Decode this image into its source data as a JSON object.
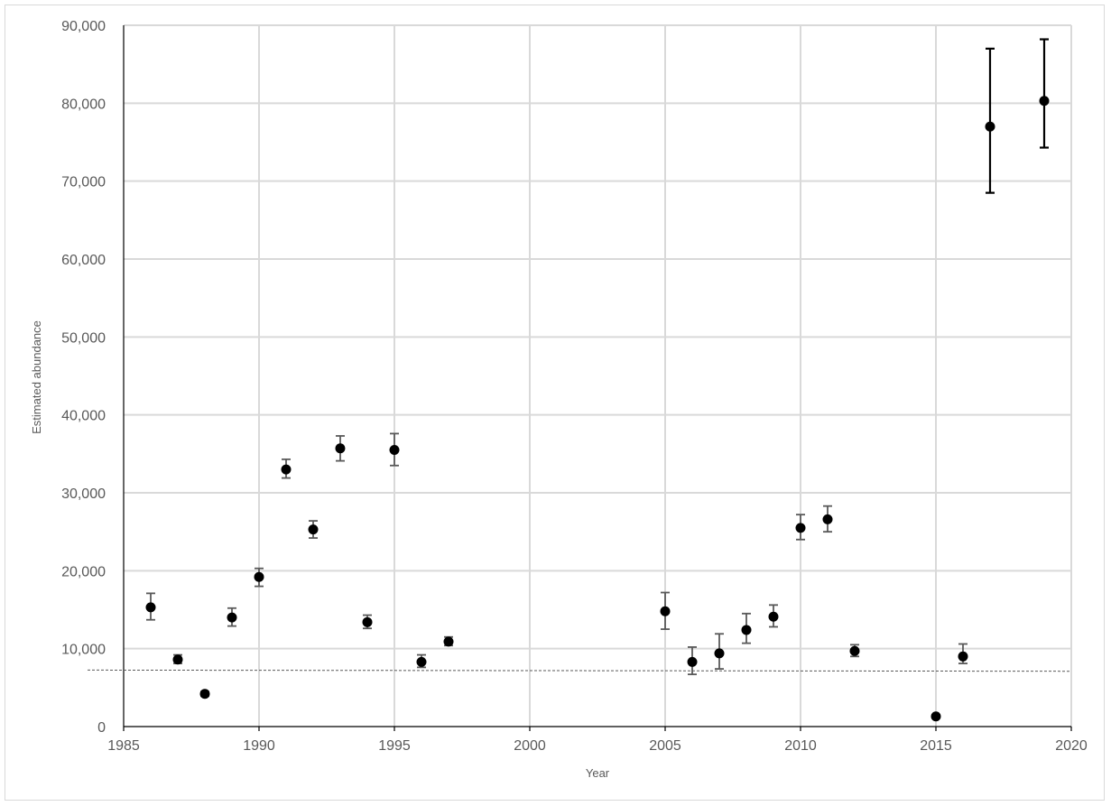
{
  "chart_data": {
    "type": "scatter",
    "title": "",
    "xlabel": "Year",
    "ylabel": "Estimated abundance",
    "xlim": [
      1985,
      2020
    ],
    "ylim": [
      0,
      90000
    ],
    "x_ticks": [
      1985,
      1990,
      1995,
      2000,
      2005,
      2010,
      2015,
      2020
    ],
    "y_ticks": [
      0,
      10000,
      20000,
      30000,
      40000,
      50000,
      60000,
      70000,
      80000,
      90000
    ],
    "y_tick_labels": [
      "0",
      "10,000",
      "20,000",
      "30,000",
      "40,000",
      "50,000",
      "60,000",
      "70,000",
      "80,000",
      "90,000"
    ],
    "x_tick_labels": [
      "1985",
      "1990",
      "1995",
      "2000",
      "2005",
      "2010",
      "2015",
      "2020"
    ],
    "grid": "both-major",
    "legend": "none",
    "colors": {
      "points": "#000000",
      "gridline": "#d9d9d9",
      "reference_line": "#595959",
      "error_bar_light": "#595959",
      "error_bar_dark": "#000000"
    },
    "reference_line": {
      "style": "dashed",
      "y_start": 7250,
      "y_end": 7100
    },
    "series": [
      {
        "points": [
          {
            "x": 1986,
            "y": 15300,
            "lo": 13700,
            "hi": 17100
          },
          {
            "x": 1987,
            "y": 8600,
            "lo": 8100,
            "hi": 9200
          },
          {
            "x": 1988,
            "y": 4200,
            "lo": 3900,
            "hi": 4500
          },
          {
            "x": 1989,
            "y": 14000,
            "lo": 12900,
            "hi": 15200
          },
          {
            "x": 1990,
            "y": 19200,
            "lo": 18000,
            "hi": 20300
          },
          {
            "x": 1991,
            "y": 33000,
            "lo": 31900,
            "hi": 34300
          },
          {
            "x": 1992,
            "y": 25300,
            "lo": 24200,
            "hi": 26400
          },
          {
            "x": 1993,
            "y": 35700,
            "lo": 34100,
            "hi": 37300
          },
          {
            "x": 1994,
            "y": 13400,
            "lo": 12600,
            "hi": 14300
          },
          {
            "x": 1995,
            "y": 35500,
            "lo": 33500,
            "hi": 37600
          },
          {
            "x": 1996,
            "y": 8300,
            "lo": 7600,
            "hi": 9200
          },
          {
            "x": 1997,
            "y": 10900,
            "lo": 10400,
            "hi": 11500
          },
          {
            "x": 2005,
            "y": 14800,
            "lo": 12500,
            "hi": 17200
          },
          {
            "x": 2006,
            "y": 8300,
            "lo": 6700,
            "hi": 10200
          },
          {
            "x": 2007,
            "y": 9400,
            "lo": 7400,
            "hi": 11900
          },
          {
            "x": 2008,
            "y": 12400,
            "lo": 10700,
            "hi": 14500
          },
          {
            "x": 2009,
            "y": 14100,
            "lo": 12800,
            "hi": 15600
          },
          {
            "x": 2010,
            "y": 25500,
            "lo": 24000,
            "hi": 27200
          },
          {
            "x": 2011,
            "y": 26600,
            "lo": 25000,
            "hi": 28300
          },
          {
            "x": 2012,
            "y": 9700,
            "lo": 9000,
            "hi": 10500
          },
          {
            "x": 2015,
            "y": 1300,
            "lo": 1100,
            "hi": 1500
          },
          {
            "x": 2016,
            "y": 9000,
            "lo": 8100,
            "hi": 10600
          },
          {
            "x": 2017,
            "y": 77000,
            "lo": 68500,
            "hi": 87000,
            "dark_error": true
          },
          {
            "x": 2019,
            "y": 80300,
            "lo": 74300,
            "hi": 88200,
            "dark_error": true
          }
        ]
      }
    ]
  }
}
